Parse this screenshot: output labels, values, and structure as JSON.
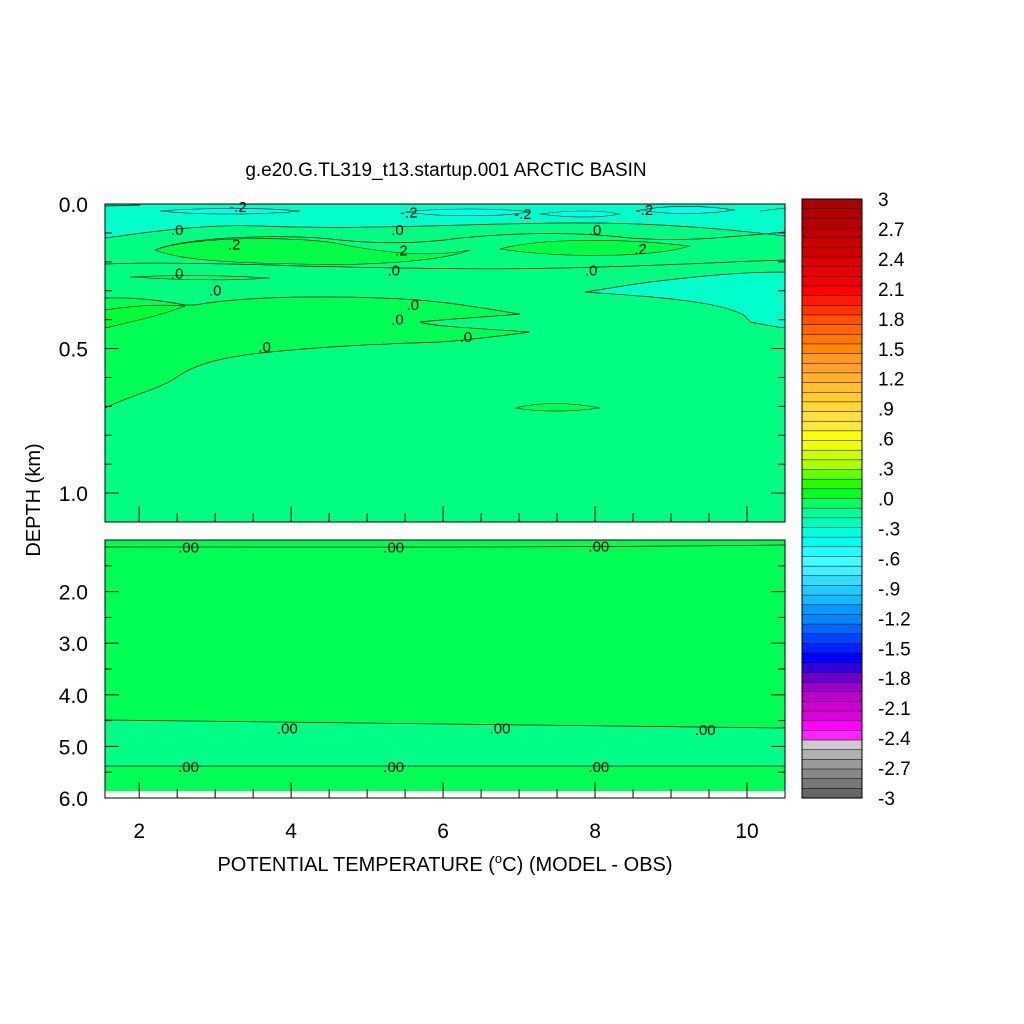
{
  "chart_data": {
    "type": "heatmap",
    "title": "g.e20.G.TL319_t13.startup.001 ARCTIC BASIN",
    "xlabel_main": "POTENTIAL TEMPERATURE (",
    "xlabel_deg": "o",
    "xlabel_tail": "C) (MODEL - OBS)",
    "ylabel": "DEPTH (km)",
    "x_ticks": [
      {
        "value": 2,
        "label": "2"
      },
      {
        "value": 4,
        "label": "4"
      },
      {
        "value": 6,
        "label": "6"
      },
      {
        "value": 8,
        "label": "8"
      },
      {
        "value": 10,
        "label": "10"
      }
    ],
    "xlim": [
      1.55,
      10.5
    ],
    "upper_panel": {
      "ylim": [
        0.0,
        1.1
      ],
      "y_ticks": [
        {
          "value": 0.0,
          "label": "0.0"
        },
        {
          "value": 0.5,
          "label": "0.5"
        },
        {
          "value": 1.0,
          "label": "1.0"
        }
      ],
      "contour_labels": [
        {
          "x": 3.3,
          "y": 0.01,
          "text": "-.2"
        },
        {
          "x": 5.55,
          "y": 0.03,
          "text": "-.2"
        },
        {
          "x": 7.05,
          "y": 0.035,
          "text": "-.2"
        },
        {
          "x": 8.65,
          "y": 0.02,
          "text": "-.2"
        },
        {
          "x": 2.5,
          "y": 0.09,
          "text": ".0"
        },
        {
          "x": 5.4,
          "y": 0.09,
          "text": ".0"
        },
        {
          "x": 8.0,
          "y": 0.09,
          "text": ".0"
        },
        {
          "x": 3.25,
          "y": 0.14,
          "text": ".2"
        },
        {
          "x": 5.45,
          "y": 0.16,
          "text": ".2"
        },
        {
          "x": 8.6,
          "y": 0.155,
          "text": ".2"
        },
        {
          "x": 2.5,
          "y": 0.24,
          "text": ".0"
        },
        {
          "x": 5.35,
          "y": 0.23,
          "text": ".0"
        },
        {
          "x": 7.95,
          "y": 0.23,
          "text": ".0"
        },
        {
          "x": 3.0,
          "y": 0.3,
          "text": ".0"
        },
        {
          "x": 5.6,
          "y": 0.35,
          "text": ".0"
        },
        {
          "x": 5.4,
          "y": 0.4,
          "text": ".0"
        },
        {
          "x": 3.65,
          "y": 0.495,
          "text": ".0"
        },
        {
          "x": 6.3,
          "y": 0.46,
          "text": ".0"
        }
      ]
    },
    "lower_panel": {
      "ylim": [
        1.0,
        6.0
      ],
      "y_ticks": [
        {
          "value": 2.0,
          "label": "2.0"
        },
        {
          "value": 3.0,
          "label": "3.0"
        },
        {
          "value": 4.0,
          "label": "4.0"
        },
        {
          "value": 5.0,
          "label": "5.0"
        },
        {
          "value": 6.0,
          "label": "6.0"
        }
      ],
      "contour_labels": [
        {
          "x": 2.65,
          "y": 1.15,
          "text": ".00"
        },
        {
          "x": 5.35,
          "y": 1.15,
          "text": ".00"
        },
        {
          "x": 8.05,
          "y": 1.13,
          "text": ".00"
        },
        {
          "x": 3.95,
          "y": 4.65,
          "text": ".00"
        },
        {
          "x": 6.75,
          "y": 4.65,
          "text": ".00"
        },
        {
          "x": 9.45,
          "y": 4.68,
          "text": ".00"
        },
        {
          "x": 2.65,
          "y": 5.4,
          "text": ".00"
        },
        {
          "x": 5.35,
          "y": 5.4,
          "text": ".00"
        },
        {
          "x": 8.05,
          "y": 5.4,
          "text": ".00"
        }
      ]
    },
    "colorbar": {
      "labels": [
        "3",
        "2.7",
        "2.4",
        "2.1",
        "1.8",
        "1.5",
        "1.2",
        ".9",
        ".6",
        ".3",
        ".0",
        "-.3",
        "-.6",
        "-.9",
        "-1.2",
        "-1.5",
        "-1.8",
        "-2.1",
        "-2.4",
        "-2.7",
        "-3"
      ],
      "colors": [
        "#aa0000",
        "#b00000",
        "#b80000",
        "#c00000",
        "#c80000",
        "#d00000",
        "#e00000",
        "#e80000",
        "#f00000",
        "#ff0000",
        "#ff1a00",
        "#ff3300",
        "#ff5000",
        "#ff6600",
        "#ff7800",
        "#ff8800",
        "#ff9a20",
        "#ffa030",
        "#ffb030",
        "#ffc030",
        "#ffcc30",
        "#ffd838",
        "#ffe040",
        "#ffe840",
        "#ffff00",
        "#f0ff00",
        "#ccff00",
        "#aaff00",
        "#66ff00",
        "#22ff00",
        "#00ff22",
        "#00ff66",
        "#00ff99",
        "#00ffbb",
        "#00ffdd",
        "#00ffee",
        "#22ffff",
        "#44ffff",
        "#44eeff",
        "#33ddff",
        "#22ccff",
        "#11bbff",
        "#0099ff",
        "#0088ff",
        "#0066ff",
        "#0044ff",
        "#0022ff",
        "#0000ff",
        "#3300dd",
        "#6600cc",
        "#9900cc",
        "#bb00cc",
        "#cc00cc",
        "#dd00dd",
        "#ff00ff",
        "#ff22ff",
        "#cccccc",
        "#b0b0b0",
        "#999999",
        "#888888",
        "#777777",
        "#666666"
      ]
    }
  }
}
